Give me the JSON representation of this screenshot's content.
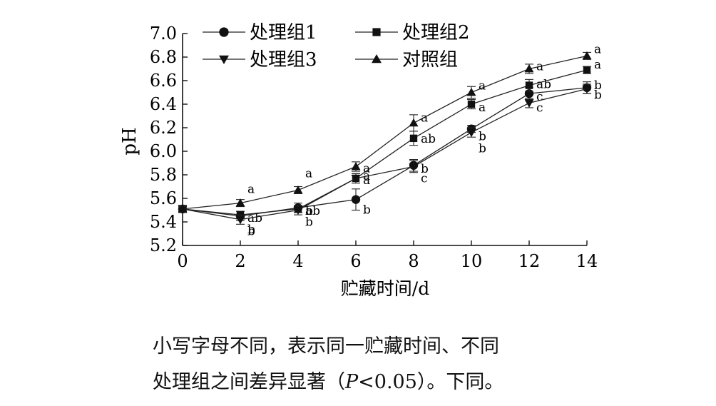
{
  "chart_data": {
    "type": "line",
    "title": "",
    "xlabel": "贮藏时间/d",
    "ylabel": "pH",
    "x": [
      0,
      2,
      4,
      6,
      8,
      10,
      12,
      14
    ],
    "xticks": [
      "0",
      "2",
      "4",
      "6",
      "8",
      "10",
      "12",
      "14"
    ],
    "xlim": [
      0,
      14
    ],
    "ylim": [
      5.2,
      7.0
    ],
    "yticks": [
      "5.2",
      "5.4",
      "5.6",
      "5.8",
      "6.0",
      "6.2",
      "6.4",
      "6.6",
      "6.8",
      "7.0"
    ],
    "grid": false,
    "legend_position": "top-left",
    "series": [
      {
        "name": "处理组1",
        "marker": "circle",
        "values": [
          5.51,
          5.45,
          5.52,
          5.59,
          5.88,
          6.19,
          6.49,
          6.54
        ],
        "errors": [
          0.03,
          0.04,
          0.04,
          0.09,
          0.05,
          0.03,
          0.05,
          0.05
        ],
        "letters": [
          "",
          "b",
          "b",
          "b",
          "b",
          "b",
          "c",
          "b"
        ]
      },
      {
        "name": "处理组2",
        "marker": "square",
        "values": [
          5.51,
          5.46,
          5.51,
          5.77,
          6.11,
          6.4,
          6.56,
          6.69
        ],
        "errors": [
          0.02,
          0.03,
          0.03,
          0.04,
          0.06,
          0.04,
          0.05,
          0.03
        ],
        "letters": [
          "",
          "ab",
          "ab",
          "a",
          "ab",
          "a",
          "ab",
          "a"
        ]
      },
      {
        "name": "处理组3",
        "marker": "triangle-down",
        "values": [
          5.51,
          5.42,
          5.5,
          5.77,
          5.87,
          6.16,
          6.41,
          6.53
        ],
        "errors": [
          0.03,
          0.04,
          0.04,
          0.04,
          0.05,
          0.04,
          0.04,
          0.04
        ],
        "letters": [
          "",
          "b",
          "b",
          "a",
          "c",
          "b",
          "c",
          "b"
        ]
      },
      {
        "name": "对照组",
        "marker": "triangle-up",
        "values": [
          5.51,
          5.56,
          5.67,
          5.87,
          6.24,
          6.5,
          6.7,
          6.81
        ],
        "errors": [
          0.02,
          0.03,
          0.03,
          0.04,
          0.07,
          0.05,
          0.04,
          0.03
        ],
        "letters": [
          "",
          "a",
          "a",
          "a",
          "a",
          "a",
          "a",
          "a"
        ]
      }
    ]
  },
  "caption": {
    "line1": "小写字母不同，表示同一贮藏时间、不同",
    "line2_pre": "处理组之间差异显著（",
    "line2_p": "P",
    "line2_post": "<0.05）。下同。"
  }
}
